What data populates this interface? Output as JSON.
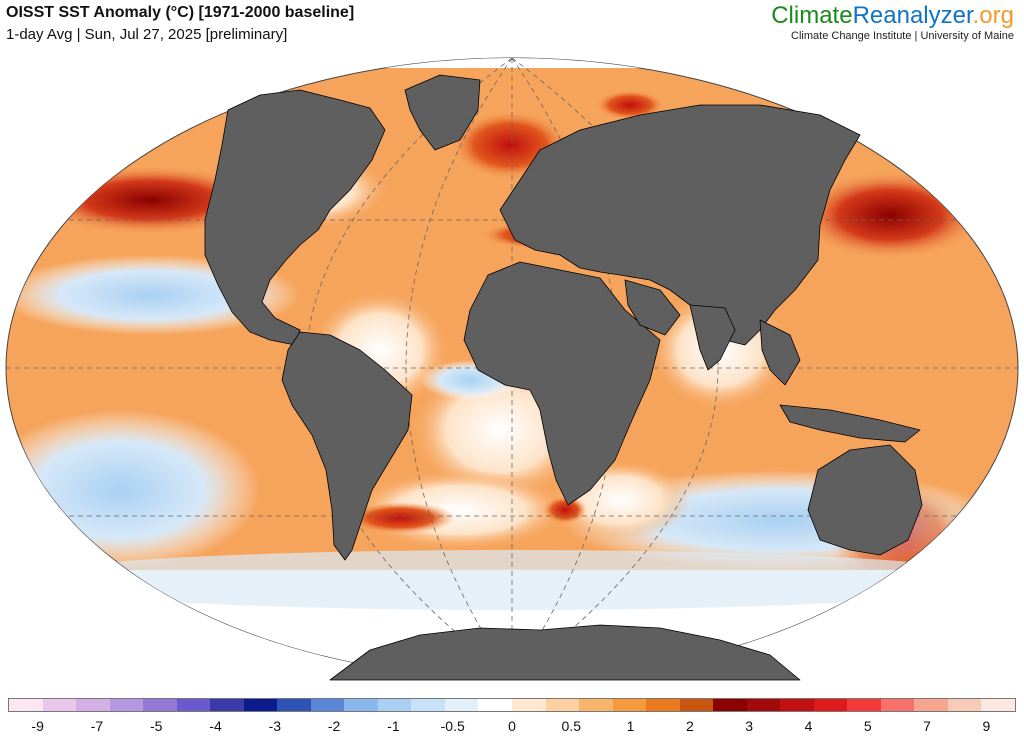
{
  "header": {
    "title": "OISST SST Anomaly (°C) [1971-2000 baseline]",
    "subtitle": "1-day Avg | Sun, Jul 27, 2025 [preliminary]"
  },
  "logo": {
    "part1": "Climate",
    "part2": "Reanalyzer",
    "part3": ".org",
    "tagline": "Climate Change Institute | University of Maine",
    "colors": {
      "climate": "#1a8b1a",
      "reanalyzer": "#1273c4",
      "org": "#f29a2e"
    }
  },
  "map": {
    "projection": "robinson",
    "ocean_background": "#f6a45c",
    "land_color": "#5f5f5f",
    "land_border_color": "#000000",
    "graticule": "dashed"
  },
  "colorbar": {
    "colors": [
      "#fbe6f1",
      "#e8c8ea",
      "#d3b0e6",
      "#b596e0",
      "#9378d6",
      "#6a5acd",
      "#3b3ba8",
      "#0b1a8c",
      "#2f52b5",
      "#5a86d6",
      "#8ab8ec",
      "#a9d0f2",
      "#c7e1f7",
      "#e3f0fb",
      "#ffffff",
      "#ffe8d0",
      "#fcd0a0",
      "#f9b46c",
      "#f69a3e",
      "#ea7a1e",
      "#c85610",
      "#8b0000",
      "#a10a0a",
      "#c20f0f",
      "#df1a1a",
      "#f53a3a",
      "#f8706a",
      "#f7a58e",
      "#f6cbb7",
      "#fbe9e1"
    ],
    "tick_labels": [
      "-9",
      "-7",
      "-5",
      "-4",
      "-3",
      "-2",
      "-1",
      "-0.5",
      "0",
      "0.5",
      "1",
      "2",
      "3",
      "4",
      "5",
      "7",
      "9"
    ]
  }
}
